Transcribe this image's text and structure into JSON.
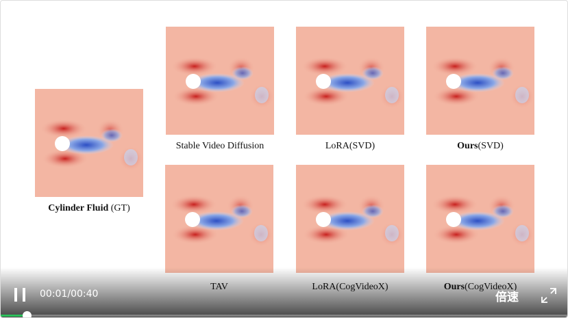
{
  "figure": {
    "panels": [
      {
        "caption": [
          {
            "text": "Cylinder Fluid",
            "bold": true
          },
          {
            "text": " (GT)"
          }
        ]
      },
      {
        "caption": [
          {
            "text": "Stable Video Diffusion"
          }
        ]
      },
      {
        "caption": [
          {
            "text": "LoRA(SVD)"
          }
        ]
      },
      {
        "caption": [
          {
            "text": "Ours",
            "bold": true
          },
          {
            "text": "(SVD)"
          }
        ]
      },
      {
        "caption": [
          {
            "text": "TAV"
          }
        ]
      },
      {
        "caption": [
          {
            "text": "LoRA(CogVideoX)"
          }
        ]
      },
      {
        "caption": [
          {
            "text": "Ours",
            "bold": true
          },
          {
            "text": "(CogVideoX)"
          }
        ]
      }
    ]
  },
  "player": {
    "time": "00:01/00:40",
    "speed": "倍速"
  }
}
